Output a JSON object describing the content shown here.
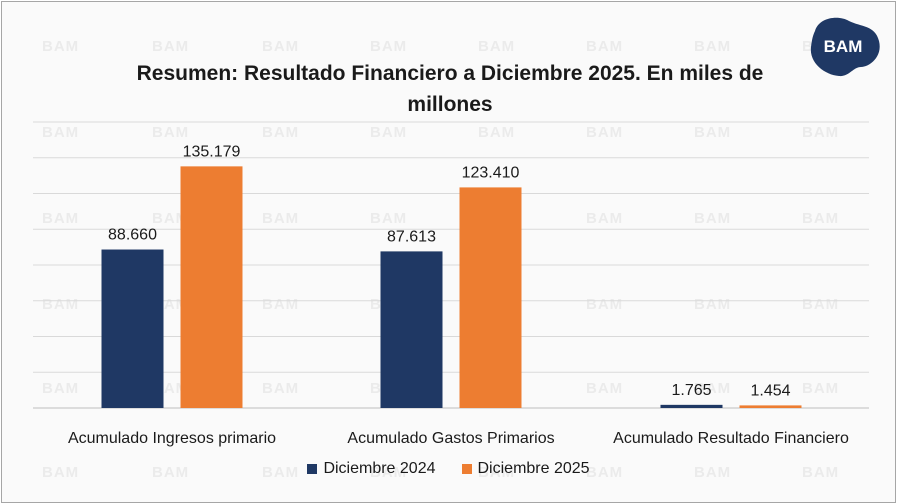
{
  "chart_data": {
    "type": "bar",
    "title": "Resumen: Resultado Financiero a Diciembre 2025. En miles de millones",
    "categories": [
      "Acumulado Ingresos primario",
      "Acumulado Gastos Primarios",
      "Acumulado Resultado Financiero"
    ],
    "series": [
      {
        "name": "Diciembre 2024",
        "values": [
          88660,
          87613,
          1765
        ],
        "labels": [
          "88.660",
          "87.613",
          "1.765"
        ],
        "color": "#1f3864"
      },
      {
        "name": "Diciembre 2025",
        "values": [
          135179,
          123410,
          1454
        ],
        "labels": [
          "135.179",
          "123.410",
          "1.454"
        ],
        "color": "#ed7d31"
      }
    ],
    "ylim": [
      0,
      160000
    ],
    "grid": true,
    "legend_position": "bottom"
  },
  "logo": {
    "text": "BAM",
    "color": "#1f3864"
  },
  "watermark": {
    "text": "BAM"
  }
}
